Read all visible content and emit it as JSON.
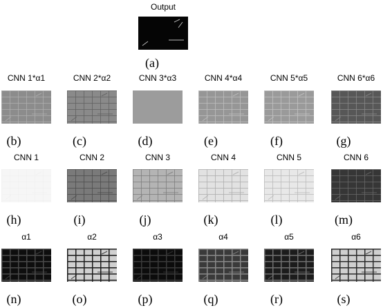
{
  "output": {
    "title": "Output",
    "label": "(a)"
  },
  "rows": [
    {
      "panels": [
        {
          "title": "CNN 1*α1",
          "label": "(b)"
        },
        {
          "title": "CNN 2*α2",
          "label": "(c)"
        },
        {
          "title": "CNN 3*α3",
          "label": "(d)"
        },
        {
          "title": "CNN 4*α4",
          "label": "(e)"
        },
        {
          "title": "CNN 5*α5",
          "label": "(f)"
        },
        {
          "title": "CNN 6*α6",
          "label": "(g)"
        }
      ]
    },
    {
      "panels": [
        {
          "title": "CNN 1",
          "label": "(h)"
        },
        {
          "title": "CNN 2",
          "label": "(i)"
        },
        {
          "title": "CNN 3",
          "label": "(j)"
        },
        {
          "title": "CNN 4",
          "label": "(k)"
        },
        {
          "title": "CNN 5",
          "label": "(l)"
        },
        {
          "title": "CNN 6",
          "label": "(m)"
        }
      ]
    },
    {
      "panels": [
        {
          "title": "α1",
          "label": "(n)"
        },
        {
          "title": "α2",
          "label": "(o)"
        },
        {
          "title": "α3",
          "label": "(p)"
        },
        {
          "title": "α4",
          "label": "(q)"
        },
        {
          "title": "α5",
          "label": "(r)"
        },
        {
          "title": "α6",
          "label": "(s)"
        }
      ]
    }
  ]
}
